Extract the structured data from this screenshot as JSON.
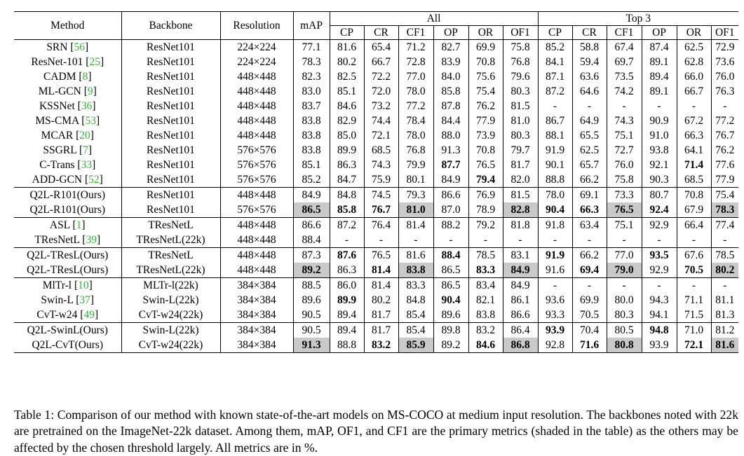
{
  "table": {
    "headers": {
      "method": "Method",
      "backbone": "Backbone",
      "resolution": "Resolution",
      "map": "mAP",
      "group_all": "All",
      "group_top3": "Top 3",
      "metrics": [
        "CP",
        "CR",
        "CF1",
        "OP",
        "OR",
        "OF1",
        "CP",
        "CR",
        "CF1",
        "OP",
        "OR",
        "OF1"
      ]
    },
    "groups": [
      {
        "sections": [
          {
            "rows": [
              {
                "method": "SRN",
                "ref": "56",
                "backbone": "ResNet101",
                "res": "224×224",
                "vals": [
                  "77.1",
                  "81.6",
                  "65.4",
                  "71.2",
                  "82.7",
                  "69.9",
                  "75.8",
                  "85.2",
                  "58.8",
                  "67.4",
                  "87.4",
                  "62.5",
                  "72.9"
                ],
                "bold": [],
                "shade": []
              },
              {
                "method": "ResNet-101",
                "ref": "25",
                "backbone": "ResNet101",
                "res": "224×224",
                "vals": [
                  "78.3",
                  "80.2",
                  "66.7",
                  "72.8",
                  "83.9",
                  "70.8",
                  "76.8",
                  "84.1",
                  "59.4",
                  "69.7",
                  "89.1",
                  "62.8",
                  "73.6"
                ],
                "bold": [],
                "shade": []
              },
              {
                "method": "CADM",
                "ref": "8",
                "backbone": "ResNet101",
                "res": "448×448",
                "vals": [
                  "82.3",
                  "82.5",
                  "72.2",
                  "77.0",
                  "84.0",
                  "75.6",
                  "79.6",
                  "87.1",
                  "63.6",
                  "73.5",
                  "89.4",
                  "66.0",
                  "76.0"
                ],
                "bold": [],
                "shade": []
              },
              {
                "method": "ML-GCN",
                "ref": "9",
                "backbone": "ResNet101",
                "res": "448×448",
                "vals": [
                  "83.0",
                  "85.1",
                  "72.0",
                  "78.0",
                  "85.8",
                  "75.4",
                  "80.3",
                  "87.2",
                  "64.6",
                  "74.2",
                  "89.1",
                  "66.7",
                  "76.3"
                ],
                "bold": [],
                "shade": []
              },
              {
                "method": "KSSNet",
                "ref": "36",
                "backbone": "ResNet101",
                "res": "448×448",
                "vals": [
                  "83.7",
                  "84.6",
                  "73.2",
                  "77.2",
                  "87.8",
                  "76.2",
                  "81.5",
                  "-",
                  "-",
                  "-",
                  "-",
                  "-",
                  "-"
                ],
                "bold": [],
                "shade": []
              },
              {
                "method": "MS-CMA",
                "ref": "53",
                "backbone": "ResNet101",
                "res": "448×448",
                "vals": [
                  "83.8",
                  "82.9",
                  "74.4",
                  "78.4",
                  "84.4",
                  "77.9",
                  "81.0",
                  "86.7",
                  "64.9",
                  "74.3",
                  "90.9",
                  "67.2",
                  "77.2"
                ],
                "bold": [],
                "shade": []
              },
              {
                "method": "MCAR",
                "ref": "20",
                "backbone": "ResNet101",
                "res": "448×448",
                "vals": [
                  "83.8",
                  "85.0",
                  "72.1",
                  "78.0",
                  "88.0",
                  "73.9",
                  "80.3",
                  "88.1",
                  "65.5",
                  "75.1",
                  "91.0",
                  "66.3",
                  "76.7"
                ],
                "bold": [],
                "shade": []
              },
              {
                "method": "SSGRL",
                "ref": "7",
                "backbone": "ResNet101",
                "res": "576×576",
                "vals": [
                  "83.8",
                  "89.9",
                  "68.5",
                  "76.8",
                  "91.3",
                  "70.8",
                  "79.7",
                  "91.9",
                  "62.5",
                  "72.7",
                  "93.8",
                  "64.1",
                  "76.2"
                ],
                "bold": [],
                "shade": []
              },
              {
                "method": "C-Trans",
                "ref": "33",
                "backbone": "ResNet101",
                "res": "576×576",
                "vals": [
                  "85.1",
                  "86.3",
                  "74.3",
                  "79.9",
                  "87.7",
                  "76.5",
                  "81.7",
                  "90.1",
                  "65.7",
                  "76.0",
                  "92.1",
                  "71.4",
                  "77.6"
                ],
                "bold": [
                  4,
                  11
                ],
                "shade": []
              },
              {
                "method": "ADD-GCN",
                "ref": "52",
                "backbone": "ResNet101",
                "res": "576×576",
                "vals": [
                  "85.2",
                  "84.7",
                  "75.9",
                  "80.1",
                  "84.9",
                  "79.4",
                  "82.0",
                  "88.8",
                  "66.2",
                  "75.8",
                  "90.3",
                  "68.5",
                  "77.9"
                ],
                "bold": [
                  5
                ],
                "shade": []
              }
            ]
          },
          {
            "rows": [
              {
                "method": "Q2L-R101(Ours)",
                "ref": "",
                "backbone": "ResNet101",
                "res": "448×448",
                "vals": [
                  "84.9",
                  "84.8",
                  "74.5",
                  "79.3",
                  "86.6",
                  "76.9",
                  "81.5",
                  "78.0",
                  "69.1",
                  "73.3",
                  "80.7",
                  "70.8",
                  "75.4"
                ],
                "bold": [],
                "shade": []
              },
              {
                "method": "Q2L-R101(Ours)",
                "ref": "",
                "backbone": "ResNet101",
                "res": "576×576",
                "vals": [
                  "86.5",
                  "85.8",
                  "76.7",
                  "81.0",
                  "87.0",
                  "78.9",
                  "82.8",
                  "90.4",
                  "66.3",
                  "76.5",
                  "92.4",
                  "67.9",
                  "78.3"
                ],
                "bold": [
                  0,
                  1,
                  2,
                  3,
                  6,
                  7,
                  8,
                  9,
                  10,
                  12
                ],
                "shade": [
                  0,
                  3,
                  6,
                  9,
                  12
                ]
              }
            ]
          }
        ]
      },
      {
        "sections": [
          {
            "rows": [
              {
                "method": "ASL",
                "ref": "1",
                "backbone": "TResNetL",
                "res": "448×448",
                "vals": [
                  "86.6",
                  "87.2",
                  "76.4",
                  "81.4",
                  "88.2",
                  "79.2",
                  "81.8",
                  "91.8",
                  "63.4",
                  "75.1",
                  "92.9",
                  "66.4",
                  "77.4"
                ],
                "bold": [],
                "shade": []
              },
              {
                "method": "TResNetL",
                "ref": "39",
                "backbone": "TResNetL(22k)",
                "res": "448×448",
                "vals": [
                  "88.4",
                  "-",
                  "-",
                  "-",
                  "-",
                  "-",
                  "-",
                  "-",
                  "-",
                  "-",
                  "-",
                  "-",
                  "-"
                ],
                "bold": [],
                "shade": []
              }
            ]
          },
          {
            "rows": [
              {
                "method": "Q2L-TResL(Ours)",
                "ref": "",
                "backbone": "TResNetL",
                "res": "448×448",
                "vals": [
                  "87.3",
                  "87.6",
                  "76.5",
                  "81.6",
                  "88.4",
                  "78.5",
                  "83.1",
                  "91.9",
                  "66.2",
                  "77.0",
                  "93.5",
                  "67.6",
                  "78.5"
                ],
                "bold": [
                  1,
                  4,
                  7,
                  10
                ],
                "shade": []
              },
              {
                "method": "Q2L-TResL(Ours)",
                "ref": "",
                "backbone": "TResNetL(22k)",
                "res": "448×448",
                "vals": [
                  "89.2",
                  "86.3",
                  "81.4",
                  "83.8",
                  "86.5",
                  "83.3",
                  "84.9",
                  "91.6",
                  "69.4",
                  "79.0",
                  "92.9",
                  "70.5",
                  "80.2"
                ],
                "bold": [
                  0,
                  2,
                  3,
                  5,
                  6,
                  8,
                  9,
                  11,
                  12
                ],
                "shade": [
                  0,
                  3,
                  6,
                  9,
                  12
                ]
              }
            ]
          }
        ]
      },
      {
        "sections": [
          {
            "rows": [
              {
                "method": "MlTr-l",
                "ref": "10",
                "backbone": "MLTr-l(22k)",
                "res": "384×384",
                "vals": [
                  "88.5",
                  "86.0",
                  "81.4",
                  "83.3",
                  "86.5",
                  "83.4",
                  "84.9",
                  "-",
                  "-",
                  "-",
                  "-",
                  "-",
                  "-"
                ],
                "bold": [],
                "shade": []
              },
              {
                "method": "Swin-L",
                "ref": "37",
                "backbone": "Swin-L(22k)",
                "res": "384×384",
                "vals": [
                  "89.6",
                  "89.9",
                  "80.2",
                  "84.8",
                  "90.4",
                  "82.1",
                  "86.1",
                  "93.6",
                  "69.9",
                  "80.0",
                  "94.3",
                  "71.1",
                  "81.1"
                ],
                "bold": [
                  1,
                  4
                ],
                "shade": []
              },
              {
                "method": "CvT-w24",
                "ref": "49",
                "backbone": "CvT-w24(22k)",
                "res": "384×384",
                "vals": [
                  "90.5",
                  "89.4",
                  "81.7",
                  "85.4",
                  "89.6",
                  "83.8",
                  "86.6",
                  "93.3",
                  "70.5",
                  "80.3",
                  "94.1",
                  "71.5",
                  "81.3"
                ],
                "bold": [],
                "shade": []
              }
            ]
          },
          {
            "rows": [
              {
                "method": "Q2L-SwinL(Ours)",
                "ref": "",
                "backbone": "Swin-L(22k)",
                "res": "384×384",
                "vals": [
                  "90.5",
                  "89.4",
                  "81.7",
                  "85.4",
                  "89.8",
                  "83.2",
                  "86.4",
                  "93.9",
                  "70.4",
                  "80.5",
                  "94.8",
                  "71.0",
                  "81.2"
                ],
                "bold": [
                  7,
                  10
                ],
                "shade": []
              },
              {
                "method": "Q2L-CvT(Ours)",
                "ref": "",
                "backbone": "CvT-w24(22k)",
                "res": "384×384",
                "vals": [
                  "91.3",
                  "88.8",
                  "83.2",
                  "85.9",
                  "89.2",
                  "84.6",
                  "86.8",
                  "92.8",
                  "71.6",
                  "80.8",
                  "93.9",
                  "72.1",
                  "81.6"
                ],
                "bold": [
                  0,
                  2,
                  3,
                  5,
                  6,
                  8,
                  9,
                  11,
                  12
                ],
                "shade": [
                  0,
                  3,
                  6,
                  9,
                  12
                ]
              }
            ]
          }
        ]
      }
    ]
  },
  "caption": "Table 1: Comparison of our method with known state-of-the-art models on MS-COCO at medium input resolution. The backbones noted with 22k are pretrained on the ImageNet-22k dataset. Among them, mAP, OF1, and CF1 are the primary metrics (shaded in the table) as the others may be affected by the chosen threshold largely. All metrics are in %.",
  "colors": {
    "shade": "#c9c9c9",
    "reference_link": "#2fb52f"
  }
}
